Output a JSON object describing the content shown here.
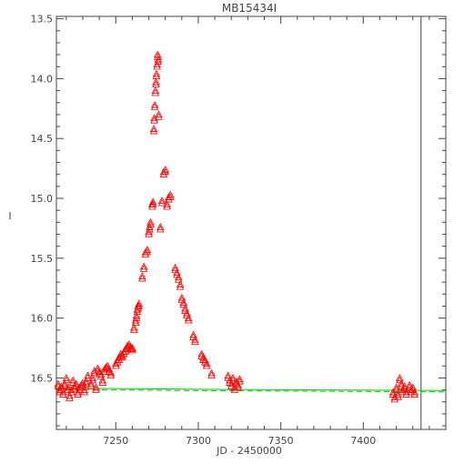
{
  "chart_data": {
    "type": "scatter",
    "title": "MB15434I",
    "xlabel": "JD - 2450000",
    "ylabel": "I",
    "xlim": [
      7214,
      7450
    ],
    "ylim": [
      16.93,
      13.48
    ],
    "y_inverted": true,
    "x_ticks": [
      7250,
      7300,
      7350,
      7400
    ],
    "y_ticks": [
      13.5,
      14.0,
      14.5,
      15.0,
      15.5,
      16.0,
      16.5
    ],
    "x_tick_labels": [
      "7250",
      "7300",
      "7350",
      "7400"
    ],
    "y_tick_labels": [
      "13.5",
      "14.0",
      "14.5",
      "15.0",
      "15.5",
      "16.0",
      "16.5"
    ],
    "marker": "triangle",
    "marker_color": "#ff0000",
    "model_color": "#00cc00",
    "vertical_line_x": 7435,
    "points": [
      [
        7215,
        16.55
      ],
      [
        7216,
        16.6
      ],
      [
        7217,
        16.57
      ],
      [
        7218,
        16.62
      ],
      [
        7219,
        16.55
      ],
      [
        7220,
        16.5
      ],
      [
        7221,
        16.58
      ],
      [
        7222,
        16.65
      ],
      [
        7223,
        16.6
      ],
      [
        7224,
        16.52
      ],
      [
        7225,
        16.57
      ],
      [
        7226,
        16.55
      ],
      [
        7227,
        16.62
      ],
      [
        7228,
        16.58
      ],
      [
        7229,
        16.56
      ],
      [
        7230,
        16.54
      ],
      [
        7231,
        16.6
      ],
      [
        7232,
        16.53
      ],
      [
        7233,
        16.48
      ],
      [
        7235,
        16.55
      ],
      [
        7236,
        16.5
      ],
      [
        7237,
        16.44
      ],
      [
        7238,
        16.58
      ],
      [
        7239,
        16.42
      ],
      [
        7240,
        16.45
      ],
      [
        7241,
        16.47
      ],
      [
        7242,
        16.52
      ],
      [
        7243,
        16.43
      ],
      [
        7244,
        16.41
      ],
      [
        7245,
        16.4
      ],
      [
        7246,
        16.43
      ],
      [
        7247,
        16.46
      ],
      [
        7250,
        16.38
      ],
      [
        7251,
        16.35
      ],
      [
        7252,
        16.33
      ],
      [
        7253,
        16.3
      ],
      [
        7254,
        16.31
      ],
      [
        7255,
        16.28
      ],
      [
        7256,
        16.26
      ],
      [
        7257,
        16.23
      ],
      [
        7258,
        16.22
      ],
      [
        7259,
        16.24
      ],
      [
        7260,
        16.25
      ],
      [
        7261,
        16.08
      ],
      [
        7262,
        16.02
      ],
      [
        7262.5,
        15.98
      ],
      [
        7263,
        15.93
      ],
      [
        7263.5,
        15.9
      ],
      [
        7264,
        15.88
      ],
      [
        7266,
        15.65
      ],
      [
        7267,
        15.57
      ],
      [
        7268,
        15.45
      ],
      [
        7269,
        15.43
      ],
      [
        7270,
        15.28
      ],
      [
        7270.5,
        15.24
      ],
      [
        7271,
        15.2
      ],
      [
        7272,
        15.05
      ],
      [
        7272.5,
        15.03
      ],
      [
        7273,
        14.42
      ],
      [
        7273.3,
        14.33
      ],
      [
        7273.6,
        14.22
      ],
      [
        7274,
        14.1
      ],
      [
        7274.3,
        14.03
      ],
      [
        7274.6,
        13.96
      ],
      [
        7275,
        13.88
      ],
      [
        7275.3,
        13.8
      ],
      [
        7275.6,
        13.84
      ],
      [
        7276,
        14.3
      ],
      [
        7277,
        15.24
      ],
      [
        7278,
        15.02
      ],
      [
        7279,
        14.78
      ],
      [
        7280,
        14.76
      ],
      [
        7281,
        15.05
      ],
      [
        7282,
        14.99
      ],
      [
        7283,
        14.97
      ],
      [
        7286,
        15.58
      ],
      [
        7287,
        15.62
      ],
      [
        7288,
        15.66
      ],
      [
        7289,
        15.72
      ],
      [
        7290,
        15.83
      ],
      [
        7291,
        15.87
      ],
      [
        7292,
        15.92
      ],
      [
        7293,
        15.96
      ],
      [
        7294,
        16.0
      ],
      [
        7297,
        16.14
      ],
      [
        7298,
        16.18
      ],
      [
        7302,
        16.3
      ],
      [
        7303,
        16.33
      ],
      [
        7304,
        16.35
      ],
      [
        7305,
        16.38
      ],
      [
        7308,
        16.46
      ],
      [
        7318,
        16.48
      ],
      [
        7319,
        16.52
      ],
      [
        7320,
        16.55
      ],
      [
        7321,
        16.5
      ],
      [
        7322,
        16.58
      ],
      [
        7323,
        16.53
      ],
      [
        7324,
        16.56
      ],
      [
        7325,
        16.51
      ],
      [
        7418,
        16.62
      ],
      [
        7419,
        16.66
      ],
      [
        7420,
        16.58
      ],
      [
        7421,
        16.64
      ],
      [
        7422,
        16.5
      ],
      [
        7423,
        16.55
      ],
      [
        7424,
        16.6
      ],
      [
        7425,
        16.57
      ],
      [
        7426,
        16.62
      ],
      [
        7428,
        16.56
      ],
      [
        7429,
        16.6
      ],
      [
        7430,
        16.58
      ],
      [
        7431,
        16.62
      ]
    ],
    "model_line": [
      [
        7214,
        16.585
      ],
      [
        7300,
        16.595
      ],
      [
        7450,
        16.605
      ]
    ]
  }
}
